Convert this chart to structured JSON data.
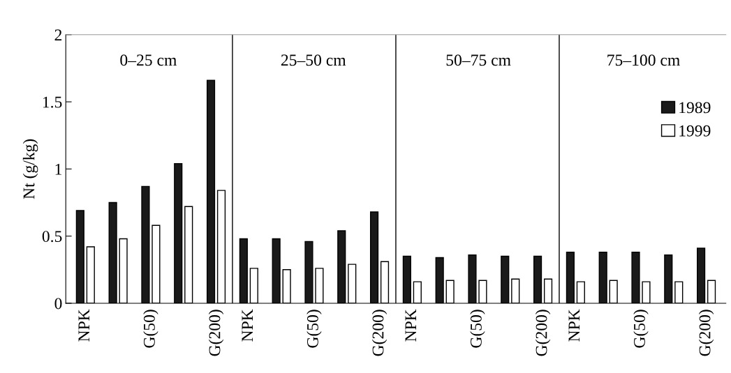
{
  "chart_data": {
    "type": "bar",
    "ylabel": "Nt (g/kg)",
    "categories": [
      "NPK",
      null,
      "G(50)",
      null,
      "G(200)",
      "NPK",
      null,
      "G(50)",
      null,
      "G(200)",
      "NPK",
      null,
      "G(50)",
      null,
      "G(200)",
      "NPK",
      null,
      "G(50)",
      null,
      "G(200)"
    ],
    "ylim": [
      0,
      2
    ],
    "yticks": [
      0,
      0.5,
      1,
      1.5,
      2
    ],
    "legend": "right",
    "annotations": [
      "0–25 cm",
      "25–50 cm",
      "50–75 cm",
      "75–100 cm"
    ],
    "series": [
      {
        "name": "1989",
        "color": "#1a1a1a",
        "values": [
          0.69,
          0.75,
          0.87,
          1.04,
          1.66,
          0.48,
          0.48,
          0.46,
          0.54,
          0.68,
          0.35,
          0.34,
          0.36,
          0.35,
          0.35,
          0.38,
          0.38,
          0.38,
          0.36,
          0.41
        ]
      },
      {
        "name": "1999",
        "color": "#ffffff",
        "values": [
          0.42,
          0.48,
          0.58,
          0.72,
          0.84,
          0.26,
          0.25,
          0.26,
          0.29,
          0.31,
          0.16,
          0.17,
          0.17,
          0.18,
          0.18,
          0.16,
          0.17,
          0.16,
          0.16,
          0.17
        ]
      }
    ]
  }
}
